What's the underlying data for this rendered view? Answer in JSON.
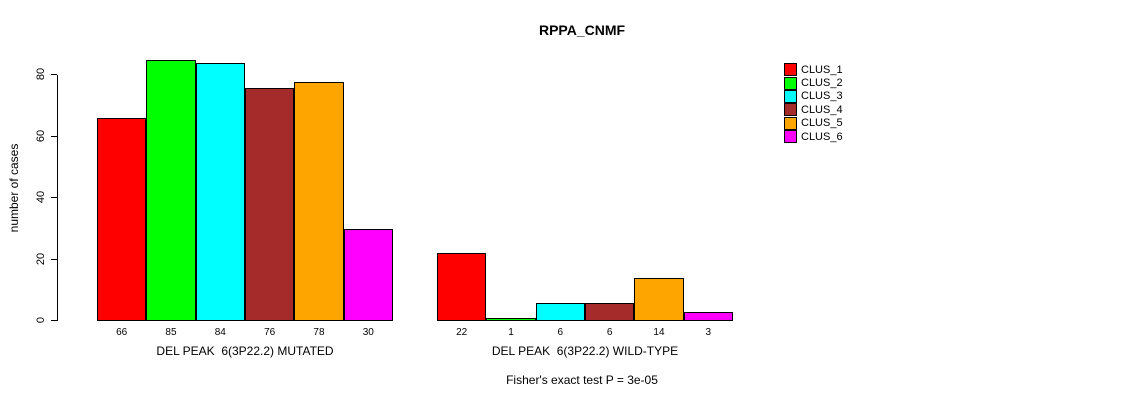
{
  "title": "RPPA_CNMF",
  "y_axis": {
    "label": "number of cases"
  },
  "footer": "Fisher's exact test P = 3e-05",
  "legend": {
    "items": [
      {
        "label": "CLUS_1",
        "color": "#FF0000"
      },
      {
        "label": "CLUS_2",
        "color": "#00FF00"
      },
      {
        "label": "CLUS_3",
        "color": "#00FFFF"
      },
      {
        "label": "CLUS_4",
        "color": "#A52A2A"
      },
      {
        "label": "CLUS_5",
        "color": "#FFA500"
      },
      {
        "label": "CLUS_6",
        "color": "#FF00FF"
      }
    ]
  },
  "chart_data": {
    "type": "bar",
    "title": "RPPA_CNMF",
    "xlabel": "",
    "ylabel": "number of cases",
    "ylim": [
      0,
      88
    ],
    "yticks": [
      0,
      20,
      40,
      60,
      80
    ],
    "grid": false,
    "legend_position": "right",
    "series": [
      "CLUS_1",
      "CLUS_2",
      "CLUS_3",
      "CLUS_4",
      "CLUS_5",
      "CLUS_6"
    ],
    "series_colors": [
      "#FF0000",
      "#00FF00",
      "#00FFFF",
      "#A52A2A",
      "#FFA500",
      "#FF00FF"
    ],
    "groups": [
      {
        "label": "DEL PEAK  6(3P22.2) MUTATED",
        "values": [
          66,
          85,
          84,
          76,
          78,
          30
        ]
      },
      {
        "label": "DEL PEAK  6(3P22.2) WILD-TYPE",
        "values": [
          22,
          1,
          6,
          6,
          14,
          3
        ]
      }
    ],
    "annotation": "Fisher's exact test P = 3e-05"
  }
}
